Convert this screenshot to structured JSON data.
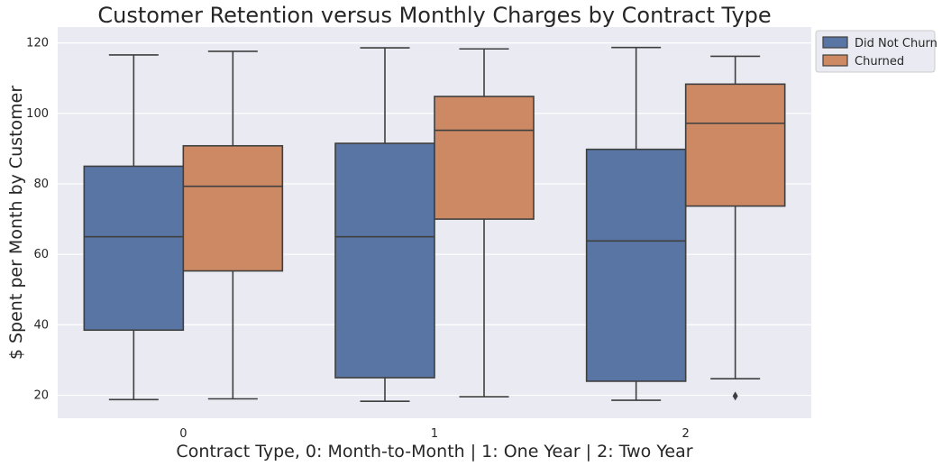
{
  "chart_data": {
    "type": "boxplot",
    "title": "Customer Retention versus Monthly Charges by Contract Type",
    "xlabel": "Contract Type, 0: Month-to-Month | 1: One Year | 2: Two Year",
    "ylabel": "$ Spent per Month by Customer",
    "categories": [
      "0",
      "1",
      "2"
    ],
    "ylim": [
      13.5,
      124.5
    ],
    "yticks": [
      20,
      40,
      60,
      80,
      100,
      120
    ],
    "grid": true,
    "legend_position": "outside top-right",
    "series": [
      {
        "name": "Did Not Churn",
        "color": "#5975a4",
        "boxes": [
          {
            "whisker_low": 18.8,
            "q1": 38.5,
            "median": 65.0,
            "q3": 85.0,
            "whisker_high": 116.6,
            "outliers": []
          },
          {
            "whisker_low": 18.3,
            "q1": 25.0,
            "median": 65.0,
            "q3": 91.5,
            "whisker_high": 118.6,
            "outliers": []
          },
          {
            "whisker_low": 18.6,
            "q1": 24.0,
            "median": 63.8,
            "q3": 89.8,
            "whisker_high": 118.7,
            "outliers": []
          }
        ]
      },
      {
        "name": "Churned",
        "color": "#cc8963",
        "boxes": [
          {
            "whisker_low": 19.0,
            "q1": 55.3,
            "median": 79.3,
            "q3": 90.8,
            "whisker_high": 117.6,
            "outliers": []
          },
          {
            "whisker_low": 19.6,
            "q1": 70.0,
            "median": 95.2,
            "q3": 104.8,
            "whisker_high": 118.3,
            "outliers": []
          },
          {
            "whisker_low": 24.7,
            "q1": 73.7,
            "median": 97.2,
            "q3": 108.3,
            "whisker_high": 116.2,
            "outliers": [
              19.8
            ]
          }
        ]
      }
    ]
  }
}
